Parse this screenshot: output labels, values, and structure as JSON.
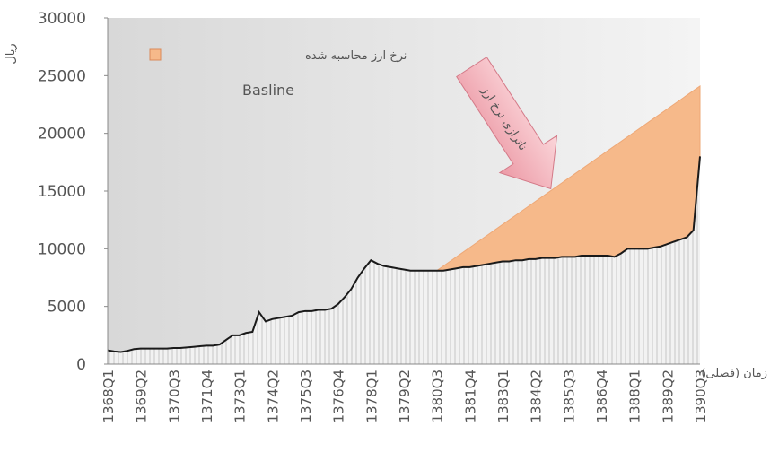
{
  "chart_data": {
    "type": "line",
    "y_label": "ریال",
    "x_label": "زمان (فصلی)",
    "annotations": [
      "ناترازی نرخ ارز"
    ],
    "categories": [
      "1368Q1",
      null,
      null,
      null,
      null,
      "1369Q2",
      null,
      null,
      null,
      null,
      "1370Q3",
      null,
      null,
      null,
      null,
      "1371Q4",
      null,
      null,
      null,
      null,
      "1373Q1",
      null,
      null,
      null,
      null,
      "1374Q2",
      null,
      null,
      null,
      null,
      "1375Q3",
      null,
      null,
      null,
      null,
      "1376Q4",
      null,
      null,
      null,
      null,
      "1378Q1",
      null,
      null,
      null,
      null,
      "1379Q2",
      null,
      null,
      null,
      null,
      "1380Q3",
      null,
      null,
      null,
      null,
      "1381Q4",
      null,
      null,
      null,
      null,
      "1383Q1",
      null,
      null,
      null,
      null,
      "1384Q2",
      null,
      null,
      null,
      null,
      "1385Q3",
      null,
      null,
      null,
      null,
      "1386Q4",
      null,
      null,
      null,
      null,
      "1388Q1",
      null,
      null,
      null,
      null,
      "1389Q2",
      null,
      null,
      null,
      null,
      "1390Q3"
    ],
    "series": [
      {
        "name": "Basline",
        "color": "#1a1a1a",
        "values": [
          1200,
          1100,
          1050,
          1150,
          1300,
          1350,
          1350,
          1350,
          1350,
          1350,
          1400,
          1400,
          1450,
          1500,
          1550,
          1600,
          1600,
          1700,
          2100,
          2500,
          2500,
          2700,
          2800,
          4500,
          3700,
          3900,
          4000,
          4100,
          4200,
          4500,
          4600,
          4600,
          4700,
          4700,
          4800,
          5200,
          5800,
          6500,
          7500,
          8300,
          9000,
          8700,
          8500,
          8400,
          8300,
          8200,
          8100,
          8100,
          8100,
          8100,
          8100,
          8100,
          8200,
          8300,
          8400,
          8400,
          8500,
          8600,
          8700,
          8800,
          8900,
          8900,
          9000,
          9000,
          9100,
          9100,
          9200,
          9200,
          9200,
          9300,
          9300,
          9300,
          9400,
          9400,
          9400,
          9400,
          9400,
          9300,
          9600,
          10000,
          10000,
          10000,
          10000,
          10100,
          10200,
          10400,
          10600,
          10800,
          11000,
          11600,
          18000
        ]
      },
      {
        "name": "نرخ ارز محاسبه شده",
        "color": "#f6b98a",
        "values": [
          null,
          null,
          null,
          null,
          null,
          null,
          null,
          null,
          null,
          null,
          null,
          null,
          null,
          null,
          null,
          null,
          null,
          null,
          null,
          null,
          null,
          null,
          null,
          null,
          null,
          null,
          null,
          null,
          null,
          null,
          null,
          null,
          null,
          null,
          null,
          null,
          null,
          null,
          null,
          null,
          null,
          null,
          null,
          null,
          null,
          null,
          null,
          null,
          null,
          null,
          8100,
          8500,
          8900,
          9300,
          9700,
          10100,
          10500,
          10900,
          11300,
          11700,
          12100,
          12500,
          12900,
          13300,
          13700,
          14100,
          14500,
          14900,
          15300,
          15700,
          16100,
          16500,
          16900,
          17300,
          17700,
          18100,
          18500,
          18900,
          19300,
          19700,
          20100,
          20500,
          20900,
          21300,
          21700,
          22100,
          22500,
          22900,
          23300,
          23700,
          24100
        ]
      }
    ],
    "ylim": [
      0,
      30000
    ],
    "yticks": [
      0,
      5000,
      10000,
      15000,
      20000,
      25000,
      30000
    ]
  }
}
